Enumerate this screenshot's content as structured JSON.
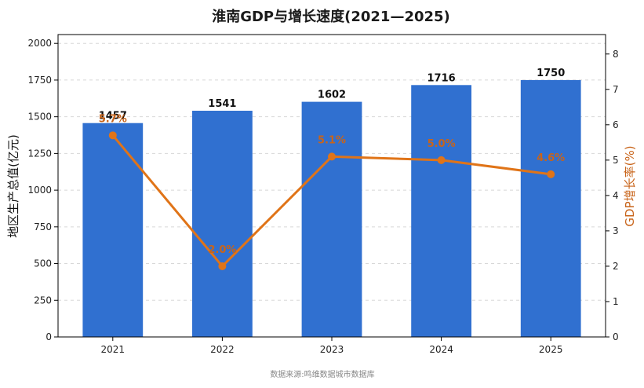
{
  "chart_data": {
    "type": "bar",
    "title": "淮南GDP与增长速度(2021—2025)",
    "categories": [
      "2021",
      "2022",
      "2023",
      "2024",
      "2025"
    ],
    "series": [
      {
        "name": "地区生产总值(亿元)",
        "type": "bar",
        "axis": "left",
        "values": [
          1457,
          1541,
          1602,
          1716,
          1750
        ],
        "labels": [
          "1457",
          "1541",
          "1602",
          "1716",
          "1750"
        ]
      },
      {
        "name": "GDP增长率(%)",
        "type": "line",
        "axis": "right",
        "values": [
          5.7,
          2.0,
          5.1,
          5.0,
          4.6
        ],
        "labels": [
          "5.7%",
          "2.0%",
          "5.1%",
          "5.0%",
          "4.6%"
        ]
      }
    ],
    "ylabel": "地区生产总值(亿元)",
    "y2label": "GDP增长率(%)",
    "ylim": [
      0,
      2060
    ],
    "y2lim": [
      0,
      8.55
    ],
    "yticks": [
      "0",
      "250",
      "500",
      "750",
      "1000",
      "1250",
      "1500",
      "1750",
      "2000"
    ],
    "y2ticks": [
      "0",
      "1",
      "2",
      "3",
      "4",
      "5",
      "6",
      "7",
      "8"
    ],
    "grid": "horizontal dashed",
    "colors": {
      "bar": "#3070d0",
      "line": "#e07418",
      "line_label": "#c8641a"
    }
  },
  "footer": {
    "source": "数据来源:鸣维数据城市数据库"
  }
}
